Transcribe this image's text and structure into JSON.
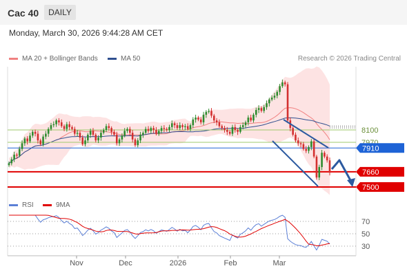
{
  "header": {
    "title": "Cac 40",
    "timeframe": "DAILY"
  },
  "datetime": "Monday, March 30, 2026 9:44:28 AM CET",
  "legend": [
    {
      "label": "MA 20 + Bollinger Bands",
      "color": "#f08080"
    },
    {
      "label": "MA 50",
      "color": "#2f4f8f"
    }
  ],
  "credit": "Research © 2026 Trading Central",
  "rsi_legend": [
    {
      "label": "RSI",
      "color": "#5b7fd6"
    },
    {
      "label": "9MA",
      "color": "#e00000"
    }
  ],
  "colors": {
    "up": "#2e8b2e",
    "down": "#d32f2f",
    "band": "#fde3e3",
    "pivot": "#1e63d6",
    "support": "#e00000",
    "resistance": "#9ec96b"
  },
  "chart_data": [
    {
      "type": "candlestick",
      "ylim": [
        7470,
        8330
      ],
      "y_tick_labels": [
        {
          "value": 8100,
          "label": "8100",
          "role": "resistance"
        },
        {
          "value": 7970,
          "label": "7970",
          "role": "resistance"
        },
        {
          "value": 7910,
          "label": "7910",
          "role": "pivot"
        },
        {
          "value": 7660,
          "label": "7660",
          "role": "support"
        },
        {
          "value": 7500,
          "label": "7500",
          "role": "support"
        }
      ],
      "x_tick_labels": [
        "Nov",
        "Dec",
        "2026",
        "Feb",
        "Mar"
      ],
      "close": [
        7750,
        7790,
        7840,
        7830,
        7900,
        7960,
        8010,
        7980,
        8040,
        8080,
        8060,
        7990,
        7950,
        8030,
        8060,
        8110,
        8150,
        8160,
        8200,
        8180,
        8140,
        8110,
        8160,
        8130,
        8110,
        8060,
        8070,
        8020,
        7950,
        7990,
        8050,
        8090,
        8050,
        7990,
        8020,
        8070,
        8100,
        8140,
        8120,
        8080,
        8050,
        7960,
        8000,
        8040,
        8090,
        8110,
        8070,
        8000,
        7940,
        7990,
        8050,
        8070,
        8110,
        8090,
        8120,
        8100,
        8060,
        8090,
        8120,
        8110,
        8100,
        8130,
        8170,
        8150,
        8120,
        8150,
        8130,
        8140,
        8110,
        8150,
        8210,
        8230,
        8210,
        8180,
        8260,
        8290,
        8300,
        8250,
        8200,
        8180,
        8140,
        8120,
        8100,
        8080,
        8060,
        8130,
        8100,
        8080,
        8130,
        8150,
        8180,
        8230,
        8200,
        8260,
        8310,
        8330,
        8300,
        8340,
        8380,
        8420,
        8440,
        8460,
        8500,
        8560,
        8600,
        8580,
        8200,
        8120,
        8050,
        7990,
        7960,
        7950,
        7900,
        7880,
        7920,
        7980,
        7820,
        7600,
        7710,
        7860,
        7820,
        7780,
        7650
      ],
      "resistance_lines": [
        8100,
        7970
      ],
      "pivot": 7910,
      "support_lines": [
        7660,
        7500
      ]
    },
    {
      "type": "line",
      "name": "RSI",
      "ylim": [
        20,
        80
      ],
      "y_tick_labels": [
        "70",
        "50",
        "30"
      ],
      "levels": [
        70,
        50,
        30
      ]
    }
  ]
}
